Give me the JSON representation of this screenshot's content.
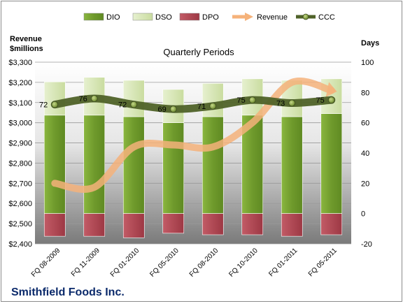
{
  "chart_data": {
    "type": "bar",
    "subtitle": "Quarterly Periods",
    "company": "Smithfield Foods Inc.",
    "left_axis_title_line1": "Revenue",
    "left_axis_title_line2": "$millions",
    "right_axis_title": "Days",
    "categories": [
      "FQ 08-2009",
      "FQ 11-2009",
      "FQ 01-2010",
      "FQ 05-2010",
      "FQ 08-2010",
      "FQ 10-2010",
      "FQ 01-2011",
      "FQ 05-2011"
    ],
    "left_axis": {
      "min": 2400,
      "max": 3300,
      "step": 100,
      "ticks": [
        "$2,400",
        "$2,500",
        "$2,600",
        "$2,700",
        "$2,800",
        "$2,900",
        "$3,000",
        "$3,100",
        "$3,200",
        "$3,300"
      ]
    },
    "right_axis": {
      "min": -20,
      "max": 100,
      "step": 20,
      "ticks": [
        "-20",
        "0",
        "20",
        "40",
        "60",
        "80",
        "100"
      ]
    },
    "series": [
      {
        "name": "DIO",
        "axis": "right",
        "kind": "stacked-bar",
        "color": "#77a032",
        "values": [
          65,
          65,
          64,
          60,
          64,
          65,
          64,
          66
        ]
      },
      {
        "name": "DSO",
        "axis": "right",
        "kind": "stacked-bar",
        "color": "#d7e8b4",
        "values": [
          22,
          25,
          24,
          22,
          22,
          24,
          24,
          23
        ]
      },
      {
        "name": "DPO",
        "axis": "right",
        "kind": "stacked-bar-negative",
        "color": "#b24a55",
        "values": [
          -15,
          -15,
          -16,
          -13,
          -14,
          -14,
          -15,
          -14
        ]
      },
      {
        "name": "Revenue",
        "axis": "left",
        "kind": "line",
        "color": "#f5b27a",
        "values": [
          2700,
          2680,
          2880,
          2890,
          2880,
          3000,
          3200,
          3160
        ]
      },
      {
        "name": "CCC",
        "axis": "right",
        "kind": "line-markers",
        "color": "#4f6228",
        "values": [
          72,
          76,
          72,
          69,
          71,
          75,
          73,
          75
        ],
        "labels": [
          "72",
          "76",
          "72",
          "69",
          "71",
          "75",
          "73",
          "75"
        ]
      }
    ],
    "legend_position": "top",
    "grid": true
  }
}
